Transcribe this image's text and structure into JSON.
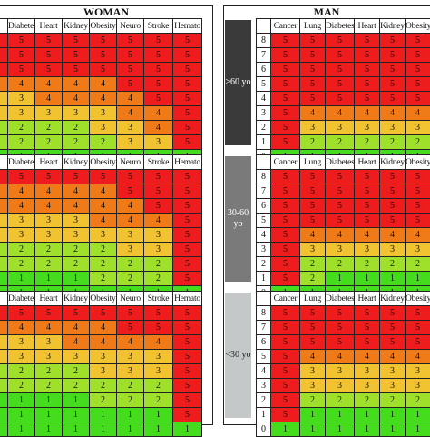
{
  "woman": {
    "title": "WOMAN",
    "columns": [
      "Diabetes",
      "Heart",
      "Kidney",
      "Obesity",
      "Neuro",
      "Stroke",
      "Hemato"
    ],
    "sections": [
      {
        "rows": [
          [
            5,
            5,
            5,
            5,
            5,
            5,
            5
          ],
          [
            5,
            5,
            5,
            5,
            5,
            5,
            5
          ],
          [
            5,
            5,
            5,
            5,
            5,
            5,
            5
          ],
          [
            4,
            4,
            4,
            4,
            5,
            5,
            5
          ],
          [
            3,
            4,
            4,
            4,
            4,
            5,
            5
          ],
          [
            3,
            3,
            3,
            3,
            4,
            4,
            5
          ],
          [
            2,
            2,
            2,
            3,
            3,
            4,
            5
          ],
          [
            2,
            2,
            2,
            2,
            3,
            3,
            5
          ],
          [
            1,
            1,
            1,
            1,
            1,
            1,
            1
          ]
        ]
      },
      {
        "rows": [
          [
            5,
            5,
            5,
            5,
            5,
            5,
            5
          ],
          [
            4,
            4,
            4,
            4,
            5,
            5,
            5
          ],
          [
            4,
            4,
            4,
            4,
            4,
            5,
            5
          ],
          [
            3,
            3,
            3,
            4,
            4,
            4,
            5
          ],
          [
            3,
            3,
            3,
            3,
            3,
            3,
            5
          ],
          [
            2,
            2,
            2,
            2,
            3,
            3,
            5
          ],
          [
            2,
            2,
            2,
            2,
            2,
            2,
            5
          ],
          [
            1,
            1,
            1,
            2,
            2,
            2,
            5
          ],
          [
            1,
            1,
            1,
            1,
            1,
            1,
            1
          ]
        ]
      },
      {
        "rows": [
          [
            5,
            5,
            5,
            5,
            5,
            5,
            5
          ],
          [
            4,
            4,
            4,
            4,
            5,
            5,
            5
          ],
          [
            3,
            3,
            4,
            4,
            4,
            4,
            5
          ],
          [
            3,
            3,
            3,
            3,
            3,
            3,
            5
          ],
          [
            2,
            2,
            2,
            3,
            3,
            3,
            5
          ],
          [
            2,
            2,
            2,
            2,
            2,
            2,
            5
          ],
          [
            1,
            1,
            1,
            2,
            2,
            2,
            5
          ],
          [
            1,
            1,
            1,
            1,
            1,
            1,
            5
          ],
          [
            1,
            1,
            1,
            1,
            1,
            1,
            1
          ]
        ]
      }
    ]
  },
  "man": {
    "title": "MAN",
    "columns": [
      "Cancer",
      "Lung",
      "Diabetes",
      "Heart",
      "Kidney",
      "Obesity"
    ],
    "scores": [
      "8",
      "7",
      "6",
      "5",
      "4",
      "3",
      "2",
      "1",
      "0"
    ],
    "sections": [
      {
        "label": ">60 yo",
        "rows": [
          [
            5,
            5,
            5,
            5,
            5,
            5
          ],
          [
            5,
            5,
            5,
            5,
            5,
            5
          ],
          [
            5,
            5,
            5,
            5,
            5,
            5
          ],
          [
            5,
            5,
            5,
            5,
            5,
            5
          ],
          [
            5,
            5,
            5,
            5,
            5,
            5
          ],
          [
            5,
            4,
            4,
            4,
            4,
            4
          ],
          [
            5,
            3,
            3,
            3,
            3,
            3
          ],
          [
            5,
            2,
            2,
            2,
            2,
            2
          ],
          [
            1,
            1,
            1,
            1,
            1,
            1
          ]
        ]
      },
      {
        "label": "30-60 yo",
        "rows": [
          [
            5,
            5,
            5,
            5,
            5,
            5
          ],
          [
            5,
            5,
            5,
            5,
            5,
            5
          ],
          [
            5,
            5,
            5,
            5,
            5,
            5
          ],
          [
            5,
            5,
            5,
            5,
            5,
            5
          ],
          [
            5,
            4,
            4,
            4,
            4,
            4
          ],
          [
            5,
            3,
            3,
            3,
            3,
            3
          ],
          [
            5,
            2,
            2,
            2,
            2,
            2
          ],
          [
            5,
            2,
            1,
            1,
            1,
            1
          ],
          [
            1,
            1,
            1,
            1,
            1,
            1
          ]
        ]
      },
      {
        "label": "<30 yo",
        "rows": [
          [
            5,
            5,
            5,
            5,
            5,
            5
          ],
          [
            5,
            5,
            5,
            5,
            5,
            5
          ],
          [
            5,
            5,
            5,
            5,
            5,
            5
          ],
          [
            5,
            4,
            4,
            4,
            4,
            4
          ],
          [
            5,
            3,
            3,
            3,
            3,
            3
          ],
          [
            5,
            3,
            3,
            3,
            3,
            3
          ],
          [
            5,
            2,
            2,
            2,
            2,
            2
          ],
          [
            5,
            1,
            1,
            1,
            1,
            1
          ],
          [
            1,
            1,
            1,
            1,
            1,
            1
          ]
        ]
      }
    ]
  },
  "colors": {
    "1": "#46dc1e",
    "2": "#9fe12a",
    "3": "#f2c331",
    "4": "#f07a18",
    "5": "#ee1c1c",
    "band_dark": "#3a3a3a",
    "band_mid": "#7a7a7a",
    "band_light": "#c4c8c8"
  }
}
